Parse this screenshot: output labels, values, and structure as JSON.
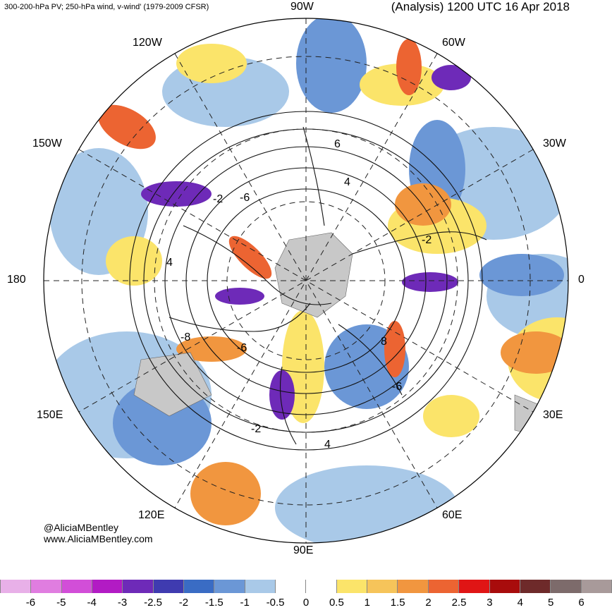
{
  "header": {
    "left": "300-200-hPa PV; 250-hPa wind, v-wind' (1979-2009 CFSR)",
    "right": "(Analysis) 1200 UTC 16 Apr 2018"
  },
  "longitude_labels": {
    "w90": "90W",
    "w120": "120W",
    "w60": "60W",
    "w150": "150W",
    "w30": "30W",
    "e180": "180",
    "zero": "0",
    "e150": "150E",
    "e30": "30E",
    "e120": "120E",
    "e60": "60E",
    "e90": "90E"
  },
  "contour_labels": [
    "-6",
    "-2",
    "4",
    "-8",
    "-6",
    "-2",
    "4",
    "8",
    "-6",
    "-2",
    "6",
    "4"
  ],
  "credit": {
    "handle": "@AliciaMBentley",
    "site": "www.AliciaMBentley.com"
  },
  "colorbar": {
    "colors": [
      "#e8b0e8",
      "#e07de0",
      "#d24ed8",
      "#b21bc4",
      "#6e2ab8",
      "#3f3bb0",
      "#3a6cc4",
      "#6b97d6",
      "#a9c9e8",
      "#ffffff",
      "#ffffff",
      "#fbe46a",
      "#f6c45a",
      "#f1963f",
      "#ec6432",
      "#e01515",
      "#a80c0c",
      "#6e2a2a",
      "#7d6b6b",
      "#a89a9a"
    ],
    "ticks": [
      "-6",
      "-5",
      "-4",
      "-3",
      "-2.5",
      "-2",
      "-1.5",
      "-1",
      "-0.5",
      "0",
      "0.5",
      "1",
      "1.5",
      "2",
      "2.5",
      "3",
      "4",
      "5",
      "6"
    ]
  },
  "map_colors": {
    "land": "#c8c8c8",
    "negative": "#3a6cc4",
    "positive": "#f1963f",
    "strong_negative": "#6e2ab8",
    "strong_positive": "#a80c0c"
  }
}
